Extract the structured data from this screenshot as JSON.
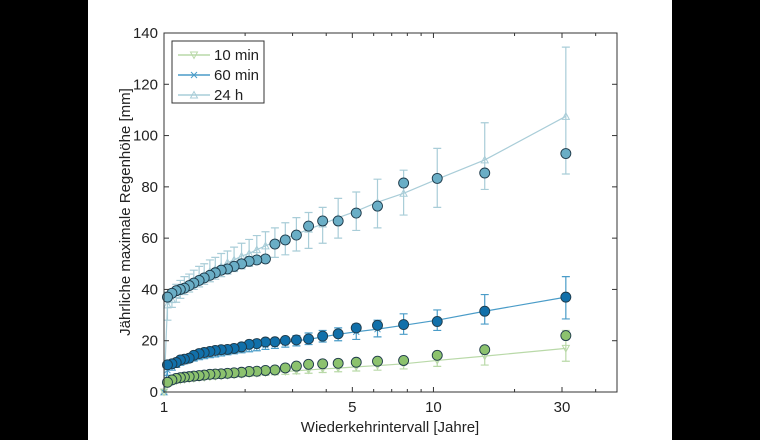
{
  "chart_data": {
    "type": "line",
    "xlabel": "Wiederkehrintervall [Jahre]",
    "ylabel": "Jährliche maximale Regenhöhe [mm]",
    "xscale": "log",
    "xlim": [
      1,
      48
    ],
    "ylim": [
      0,
      140
    ],
    "xticks": [
      1,
      5,
      10,
      30
    ],
    "xtick_labels": [
      "1",
      "5",
      "10",
      "30"
    ],
    "xminor_ticks": [
      2,
      3,
      4,
      6,
      7,
      8,
      9,
      20,
      40
    ],
    "yticks": [
      0,
      20,
      40,
      60,
      80,
      100,
      120,
      140
    ],
    "ytick_labels": [
      "0",
      "20",
      "40",
      "60",
      "80",
      "100",
      "120",
      "140"
    ],
    "grid": false,
    "legend_position": "top-left",
    "return_periods": [
      31,
      15.5,
      10.33,
      7.75,
      6.2,
      5.17,
      4.43,
      3.88,
      3.44,
      3.1,
      2.82,
      2.58,
      2.38,
      2.21,
      2.07,
      1.94,
      1.82,
      1.72,
      1.63,
      1.55,
      1.48,
      1.41,
      1.35,
      1.29,
      1.24,
      1.19,
      1.15,
      1.11,
      1.07,
      1.03,
      1.0
    ],
    "series": [
      {
        "name": "10 min",
        "marker": "triangle-down",
        "line_color": "#b9d9a8",
        "point_color": "#8cc26e",
        "observed": [
          22,
          16.5,
          14.3,
          12.3,
          12,
          11.6,
          11.2,
          11,
          10.8,
          10.1,
          9.4,
          8.6,
          8.4,
          8.1,
          8,
          7.7,
          7.5,
          7.3,
          7.1,
          7,
          6.9,
          6.6,
          6.4,
          6.2,
          6,
          5.8,
          5.6,
          5.3,
          4.7,
          3.8
        ],
        "fit": [
          17,
          14,
          12.3,
          11,
          10.3,
          9.8,
          9.3,
          9,
          8.6,
          8.3,
          8,
          7.8,
          7.5,
          7.3,
          7.1,
          6.9,
          6.7,
          6.5,
          6.3,
          6.1,
          5.9,
          5.7,
          5.5,
          5.3,
          5.1,
          4.9,
          4.6,
          4.3,
          3.9,
          3.2,
          0
        ],
        "lower": [
          12,
          10.5,
          10,
          9,
          8.5,
          8.2,
          7.9,
          7.6,
          7.3,
          7.1,
          6.9,
          6.7,
          6.5,
          6.3,
          6.1,
          6,
          5.8,
          5.6,
          5.4,
          5.3,
          5.1,
          4.9,
          4.7,
          4.5,
          4.3,
          4.1,
          3.9,
          3.6,
          3.2,
          2.4,
          null
        ],
        "upper": [
          24,
          17.5,
          15,
          13,
          12,
          11.4,
          10.8,
          10.4,
          10,
          9.6,
          9.2,
          9,
          8.6,
          8.4,
          8.2,
          7.9,
          7.7,
          7.5,
          7.3,
          7.1,
          6.8,
          6.6,
          6.4,
          6.1,
          5.9,
          5.7,
          5.4,
          5.1,
          4.6,
          4,
          null
        ]
      },
      {
        "name": "60 min",
        "marker": "x",
        "line_color": "#4a9cc8",
        "point_color": "#1170aa",
        "observed": [
          37,
          31.5,
          27.5,
          26.3,
          26,
          25,
          22.7,
          21.8,
          20.7,
          20.3,
          20.1,
          19.6,
          19.5,
          18.9,
          18.6,
          17.6,
          17,
          16.6,
          16.5,
          16.2,
          15.8,
          15.4,
          15,
          14.3,
          13.2,
          12.8,
          12.5,
          11.5,
          11,
          10.6
        ],
        "fit": [
          37,
          31.5,
          28,
          26,
          24.5,
          23.5,
          22.5,
          21.5,
          20.5,
          20,
          19.3,
          18.7,
          18.2,
          17.7,
          17.2,
          16.8,
          16.3,
          15.9,
          15.5,
          15.1,
          14.7,
          14.3,
          13.9,
          13.4,
          12.9,
          12.3,
          11.7,
          11,
          10,
          8.5,
          0
        ],
        "lower": [
          28.5,
          26.5,
          24,
          22.5,
          21.5,
          20.5,
          20,
          19.5,
          18.5,
          18,
          17.5,
          17,
          16.6,
          16.1,
          15.7,
          15.3,
          14.9,
          14.5,
          14.1,
          13.7,
          13.4,
          13,
          12.6,
          12.1,
          11.6,
          11,
          10.4,
          9.6,
          8.5,
          6.5,
          null
        ],
        "upper": [
          45,
          38,
          32,
          30.5,
          28,
          26.5,
          25,
          24,
          23,
          22,
          21.2,
          20.5,
          19.9,
          19.3,
          18.8,
          18.3,
          17.8,
          17.3,
          16.9,
          16.5,
          16.1,
          15.6,
          15.2,
          14.7,
          14.2,
          13.6,
          13,
          12.4,
          11.5,
          10.5,
          null
        ]
      },
      {
        "name": "24 h",
        "marker": "triangle-up",
        "line_color": "#a9cdd8",
        "point_color": "#6aaec6",
        "observed": [
          93,
          85.4,
          83.3,
          81.5,
          72.5,
          69.8,
          66.7,
          66.7,
          64.7,
          61.2,
          59.3,
          57.7,
          51.9,
          51.5,
          51,
          50,
          49,
          48,
          47.5,
          46.5,
          45.5,
          44.5,
          43.5,
          42.5,
          41.5,
          40.5,
          40,
          39.5,
          38.5,
          37
        ],
        "fit": [
          107.5,
          90.5,
          83,
          77.5,
          74,
          70.5,
          68,
          65.5,
          63.5,
          61.5,
          60,
          58.5,
          57,
          55.5,
          54,
          53,
          51.5,
          50.5,
          49,
          48,
          47,
          45.5,
          44.5,
          43.5,
          42,
          41,
          39.5,
          38,
          36,
          34,
          0
        ],
        "lower": [
          85,
          79,
          72,
          69,
          64,
          63,
          60,
          58,
          56,
          55,
          53.5,
          52.5,
          51,
          50,
          49,
          48,
          47,
          46,
          45,
          44,
          43,
          42,
          41,
          40,
          39,
          38,
          36.5,
          35,
          33,
          28,
          null
        ],
        "upper": [
          134.5,
          105,
          95,
          86.5,
          83,
          78,
          75.5,
          72,
          70,
          68,
          66,
          64,
          62.5,
          61,
          59.5,
          58,
          56.5,
          55,
          54,
          52.5,
          51.5,
          50,
          49,
          47.5,
          46,
          45,
          43.5,
          42,
          40,
          39,
          null
        ]
      }
    ]
  }
}
